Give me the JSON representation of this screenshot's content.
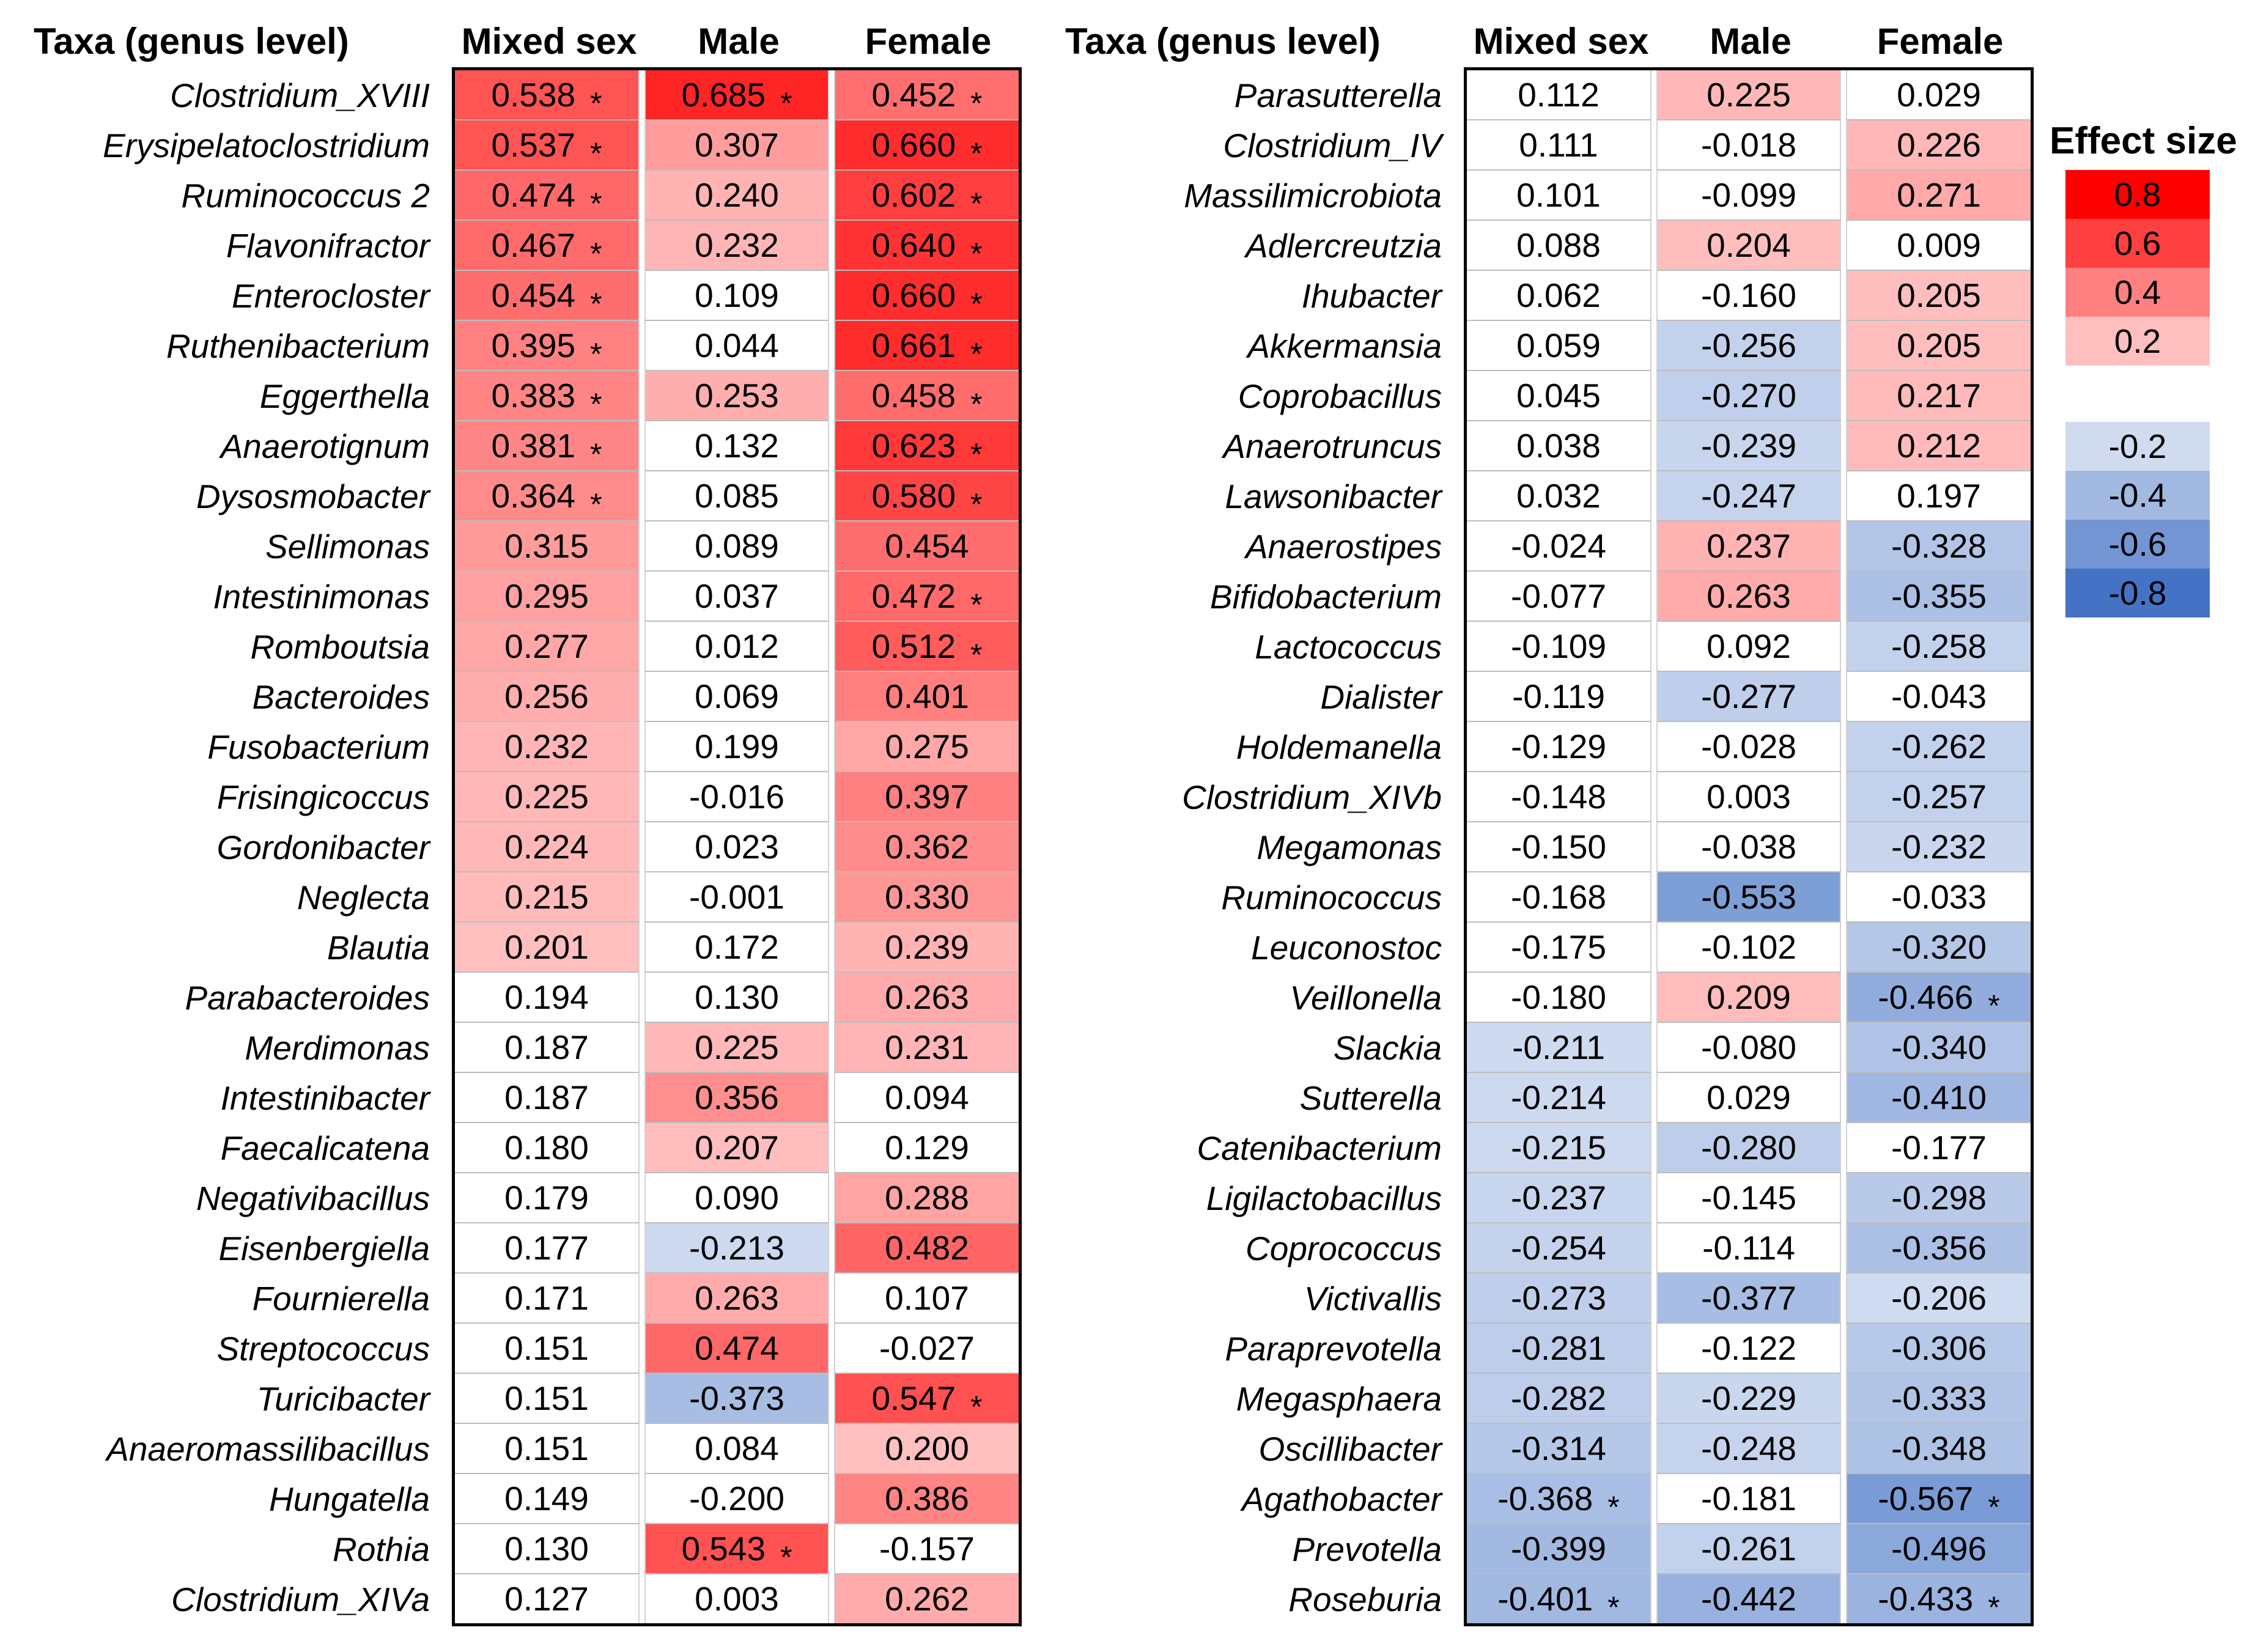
{
  "legend": {
    "title": "Effect size",
    "positive": [
      {
        "label": "0.8",
        "color": "#FF0000"
      },
      {
        "label": "0.6",
        "color": "#FF4040"
      },
      {
        "label": "0.4",
        "color": "#FF8080"
      },
      {
        "label": "0.2",
        "color": "#FFBFBF"
      }
    ],
    "negative": [
      {
        "label": "-0.2",
        "color": "#D0DBF0"
      },
      {
        "label": "-0.4",
        "color": "#A2B9E2"
      },
      {
        "label": "-0.6",
        "color": "#7395D3"
      },
      {
        "label": "-0.8",
        "color": "#4472C4"
      }
    ]
  },
  "chart_data": [
    {
      "type": "heatmap",
      "row_label_header": "Taxa (genus level)",
      "columns": [
        "Mixed sex",
        "Male",
        "Female"
      ],
      "color_scale": {
        "positive_base": "#FF0000",
        "negative_base": "#4472C4",
        "threshold": 0.2,
        "max": 0.8
      },
      "rows": [
        {
          "taxon": "Clostridium_XVIII",
          "values": [
            0.538,
            0.685,
            0.452
          ],
          "significant": [
            1,
            1,
            1
          ]
        },
        {
          "taxon": "Erysipelatoclostridium",
          "values": [
            0.537,
            0.307,
            0.66
          ],
          "significant": [
            1,
            0,
            1
          ]
        },
        {
          "taxon": "Ruminococcus 2",
          "values": [
            0.474,
            0.24,
            0.602
          ],
          "significant": [
            1,
            0,
            1
          ]
        },
        {
          "taxon": "Flavonifractor",
          "values": [
            0.467,
            0.232,
            0.64
          ],
          "significant": [
            1,
            0,
            1
          ]
        },
        {
          "taxon": "Enterocloster",
          "values": [
            0.454,
            0.109,
            0.66
          ],
          "significant": [
            1,
            0,
            1
          ]
        },
        {
          "taxon": "Ruthenibacterium",
          "values": [
            0.395,
            0.044,
            0.661
          ],
          "significant": [
            1,
            0,
            1
          ]
        },
        {
          "taxon": "Eggerthella",
          "values": [
            0.383,
            0.253,
            0.458
          ],
          "significant": [
            1,
            0,
            1
          ]
        },
        {
          "taxon": "Anaerotignum",
          "values": [
            0.381,
            0.132,
            0.623
          ],
          "significant": [
            1,
            0,
            1
          ]
        },
        {
          "taxon": "Dysosmobacter",
          "values": [
            0.364,
            0.085,
            0.58
          ],
          "significant": [
            1,
            0,
            1
          ]
        },
        {
          "taxon": "Sellimonas",
          "values": [
            0.315,
            0.089,
            0.454
          ],
          "significant": [
            0,
            0,
            0
          ]
        },
        {
          "taxon": "Intestinimonas",
          "values": [
            0.295,
            0.037,
            0.472
          ],
          "significant": [
            0,
            0,
            1
          ]
        },
        {
          "taxon": "Romboutsia",
          "values": [
            0.277,
            0.012,
            0.512
          ],
          "significant": [
            0,
            0,
            1
          ]
        },
        {
          "taxon": "Bacteroides",
          "values": [
            0.256,
            0.069,
            0.401
          ],
          "significant": [
            0,
            0,
            0
          ]
        },
        {
          "taxon": "Fusobacterium",
          "values": [
            0.232,
            0.199,
            0.275
          ],
          "significant": [
            0,
            0,
            0
          ]
        },
        {
          "taxon": "Frisingicoccus",
          "values": [
            0.225,
            -0.016,
            0.397
          ],
          "significant": [
            0,
            0,
            0
          ]
        },
        {
          "taxon": "Gordonibacter",
          "values": [
            0.224,
            0.023,
            0.362
          ],
          "significant": [
            0,
            0,
            0
          ]
        },
        {
          "taxon": "Neglecta",
          "values": [
            0.215,
            -0.001,
            0.33
          ],
          "significant": [
            0,
            0,
            0
          ]
        },
        {
          "taxon": "Blautia",
          "values": [
            0.201,
            0.172,
            0.239
          ],
          "significant": [
            0,
            0,
            0
          ]
        },
        {
          "taxon": "Parabacteroides",
          "values": [
            0.194,
            0.13,
            0.263
          ],
          "significant": [
            0,
            0,
            0
          ]
        },
        {
          "taxon": "Merdimonas",
          "values": [
            0.187,
            0.225,
            0.231
          ],
          "significant": [
            0,
            0,
            0
          ]
        },
        {
          "taxon": "Intestinibacter",
          "values": [
            0.187,
            0.356,
            0.094
          ],
          "significant": [
            0,
            0,
            0
          ]
        },
        {
          "taxon": "Faecalicatena",
          "values": [
            0.18,
            0.207,
            0.129
          ],
          "significant": [
            0,
            0,
            0
          ]
        },
        {
          "taxon": "Negativibacillus",
          "values": [
            0.179,
            0.09,
            0.288
          ],
          "significant": [
            0,
            0,
            0
          ]
        },
        {
          "taxon": "Eisenbergiella",
          "values": [
            0.177,
            -0.213,
            0.482
          ],
          "significant": [
            0,
            0,
            0
          ]
        },
        {
          "taxon": "Fournierella",
          "values": [
            0.171,
            0.263,
            0.107
          ],
          "significant": [
            0,
            0,
            0
          ]
        },
        {
          "taxon": "Streptococcus",
          "values": [
            0.151,
            0.474,
            -0.027
          ],
          "significant": [
            0,
            0,
            0
          ]
        },
        {
          "taxon": "Turicibacter",
          "values": [
            0.151,
            -0.373,
            0.547
          ],
          "significant": [
            0,
            0,
            1
          ]
        },
        {
          "taxon": "Anaeromassilibacillus",
          "values": [
            0.151,
            0.084,
            0.2
          ],
          "significant": [
            0,
            0,
            0
          ]
        },
        {
          "taxon": "Hungatella",
          "values": [
            0.149,
            -0.2,
            0.386
          ],
          "significant": [
            0,
            0,
            0
          ]
        },
        {
          "taxon": "Rothia",
          "values": [
            0.13,
            0.543,
            -0.157
          ],
          "significant": [
            0,
            1,
            0
          ]
        },
        {
          "taxon": "Clostridium_XIVa",
          "values": [
            0.127,
            0.003,
            0.262
          ],
          "significant": [
            0,
            0,
            0
          ]
        }
      ]
    },
    {
      "type": "heatmap",
      "row_label_header": "Taxa (genus level)",
      "columns": [
        "Mixed sex",
        "Male",
        "Female"
      ],
      "color_scale": {
        "positive_base": "#FF0000",
        "negative_base": "#4472C4",
        "threshold": 0.2,
        "max": 0.8
      },
      "rows": [
        {
          "taxon": "Parasutterella",
          "values": [
            0.112,
            0.225,
            0.029
          ],
          "significant": [
            0,
            0,
            0
          ]
        },
        {
          "taxon": "Clostridium_IV",
          "values": [
            0.111,
            -0.018,
            0.226
          ],
          "significant": [
            0,
            0,
            0
          ]
        },
        {
          "taxon": "Massilimicrobiota",
          "values": [
            0.101,
            -0.099,
            0.271
          ],
          "significant": [
            0,
            0,
            0
          ]
        },
        {
          "taxon": "Adlercreutzia",
          "values": [
            0.088,
            0.204,
            0.009
          ],
          "significant": [
            0,
            0,
            0
          ]
        },
        {
          "taxon": "Ihubacter",
          "values": [
            0.062,
            -0.16,
            0.205
          ],
          "significant": [
            0,
            0,
            0
          ]
        },
        {
          "taxon": "Akkermansia",
          "values": [
            0.059,
            -0.256,
            0.205
          ],
          "significant": [
            0,
            0,
            0
          ]
        },
        {
          "taxon": "Coprobacillus",
          "values": [
            0.045,
            -0.27,
            0.217
          ],
          "significant": [
            0,
            0,
            0
          ]
        },
        {
          "taxon": "Anaerotruncus",
          "values": [
            0.038,
            -0.239,
            0.212
          ],
          "significant": [
            0,
            0,
            0
          ]
        },
        {
          "taxon": "Lawsonibacter",
          "values": [
            0.032,
            -0.247,
            0.197
          ],
          "significant": [
            0,
            0,
            0
          ]
        },
        {
          "taxon": "Anaerostipes",
          "values": [
            -0.024,
            0.237,
            -0.328
          ],
          "significant": [
            0,
            0,
            0
          ]
        },
        {
          "taxon": "Bifidobacterium",
          "values": [
            -0.077,
            0.263,
            -0.355
          ],
          "significant": [
            0,
            0,
            0
          ]
        },
        {
          "taxon": "Lactococcus",
          "values": [
            -0.109,
            0.092,
            -0.258
          ],
          "significant": [
            0,
            0,
            0
          ]
        },
        {
          "taxon": "Dialister",
          "values": [
            -0.119,
            -0.277,
            -0.043
          ],
          "significant": [
            0,
            0,
            0
          ]
        },
        {
          "taxon": "Holdemanella",
          "values": [
            -0.129,
            -0.028,
            -0.262
          ],
          "significant": [
            0,
            0,
            0
          ]
        },
        {
          "taxon": "Clostridium_XIVb",
          "values": [
            -0.148,
            0.003,
            -0.257
          ],
          "significant": [
            0,
            0,
            0
          ]
        },
        {
          "taxon": "Megamonas",
          "values": [
            -0.15,
            -0.038,
            -0.232
          ],
          "significant": [
            0,
            0,
            0
          ]
        },
        {
          "taxon": "Ruminococcus",
          "values": [
            -0.168,
            -0.553,
            -0.033
          ],
          "significant": [
            0,
            0,
            0
          ]
        },
        {
          "taxon": "Leuconostoc",
          "values": [
            -0.175,
            -0.102,
            -0.32
          ],
          "significant": [
            0,
            0,
            0
          ]
        },
        {
          "taxon": "Veillonella",
          "values": [
            -0.18,
            0.209,
            -0.466
          ],
          "significant": [
            0,
            0,
            1
          ]
        },
        {
          "taxon": "Slackia",
          "values": [
            -0.211,
            -0.08,
            -0.34
          ],
          "significant": [
            0,
            0,
            0
          ]
        },
        {
          "taxon": "Sutterella",
          "values": [
            -0.214,
            0.029,
            -0.41
          ],
          "significant": [
            0,
            0,
            0
          ]
        },
        {
          "taxon": "Catenibacterium",
          "values": [
            -0.215,
            -0.28,
            -0.177
          ],
          "significant": [
            0,
            0,
            0
          ]
        },
        {
          "taxon": "Ligilactobacillus",
          "values": [
            -0.237,
            -0.145,
            -0.298
          ],
          "significant": [
            0,
            0,
            0
          ]
        },
        {
          "taxon": "Coprococcus",
          "values": [
            -0.254,
            -0.114,
            -0.356
          ],
          "significant": [
            0,
            0,
            0
          ]
        },
        {
          "taxon": "Victivallis",
          "values": [
            -0.273,
            -0.377,
            -0.206
          ],
          "significant": [
            0,
            0,
            0
          ]
        },
        {
          "taxon": "Paraprevotella",
          "values": [
            -0.281,
            -0.122,
            -0.306
          ],
          "significant": [
            0,
            0,
            0
          ]
        },
        {
          "taxon": "Megasphaera",
          "values": [
            -0.282,
            -0.229,
            -0.333
          ],
          "significant": [
            0,
            0,
            0
          ]
        },
        {
          "taxon": "Oscillibacter",
          "values": [
            -0.314,
            -0.248,
            -0.348
          ],
          "significant": [
            0,
            0,
            0
          ]
        },
        {
          "taxon": "Agathobacter",
          "values": [
            -0.368,
            -0.181,
            -0.567
          ],
          "significant": [
            1,
            0,
            1
          ]
        },
        {
          "taxon": "Prevotella",
          "values": [
            -0.399,
            -0.261,
            -0.496
          ],
          "significant": [
            0,
            0,
            0
          ]
        },
        {
          "taxon": "Roseburia",
          "values": [
            -0.401,
            -0.442,
            -0.433
          ],
          "significant": [
            1,
            0,
            1
          ]
        }
      ]
    }
  ]
}
